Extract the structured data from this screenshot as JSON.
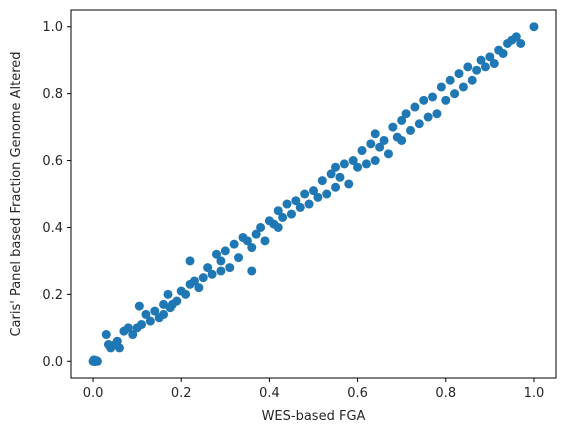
{
  "chart_data": {
    "type": "scatter",
    "title": "",
    "xlabel": "WES-based FGA",
    "ylabel": "Caris' Panel based Fraction Genome Altered",
    "xlim": [
      -0.05,
      1.05
    ],
    "ylim": [
      -0.05,
      1.05
    ],
    "xticks": [
      0.0,
      0.2,
      0.4,
      0.6,
      0.8,
      1.0
    ],
    "yticks": [
      0.0,
      0.2,
      0.4,
      0.6,
      0.8,
      1.0
    ],
    "xtick_labels": [
      "0.0",
      "0.2",
      "0.4",
      "0.6",
      "0.8",
      "1.0"
    ],
    "ytick_labels": [
      "0.0",
      "0.2",
      "0.4",
      "0.6",
      "0.8",
      "1.0"
    ],
    "grid": false,
    "legend": "none",
    "marker_color": "#1f77b4",
    "series": [
      {
        "points": [
          [
            0.0,
            0.0
          ],
          [
            0.005,
            0.0
          ],
          [
            0.008,
            0.002
          ],
          [
            0.002,
            0.004
          ],
          [
            0.01,
            0.0
          ],
          [
            0.003,
            -0.001
          ],
          [
            0.03,
            0.08
          ],
          [
            0.04,
            0.04
          ],
          [
            0.05,
            0.05
          ],
          [
            0.06,
            0.04
          ],
          [
            0.035,
            0.05
          ],
          [
            0.055,
            0.06
          ],
          [
            0.07,
            0.09
          ],
          [
            0.08,
            0.1
          ],
          [
            0.09,
            0.08
          ],
          [
            0.1,
            0.1
          ],
          [
            0.105,
            0.165
          ],
          [
            0.11,
            0.11
          ],
          [
            0.12,
            0.14
          ],
          [
            0.13,
            0.12
          ],
          [
            0.14,
            0.15
          ],
          [
            0.15,
            0.13
          ],
          [
            0.16,
            0.17
          ],
          [
            0.16,
            0.14
          ],
          [
            0.17,
            0.2
          ],
          [
            0.175,
            0.16
          ],
          [
            0.18,
            0.17
          ],
          [
            0.19,
            0.18
          ],
          [
            0.2,
            0.21
          ],
          [
            0.21,
            0.2
          ],
          [
            0.22,
            0.3
          ],
          [
            0.22,
            0.23
          ],
          [
            0.23,
            0.24
          ],
          [
            0.24,
            0.22
          ],
          [
            0.25,
            0.25
          ],
          [
            0.26,
            0.28
          ],
          [
            0.27,
            0.26
          ],
          [
            0.28,
            0.32
          ],
          [
            0.29,
            0.3
          ],
          [
            0.29,
            0.27
          ],
          [
            0.3,
            0.33
          ],
          [
            0.31,
            0.28
          ],
          [
            0.32,
            0.35
          ],
          [
            0.33,
            0.31
          ],
          [
            0.34,
            0.37
          ],
          [
            0.35,
            0.36
          ],
          [
            0.36,
            0.34
          ],
          [
            0.36,
            0.27
          ],
          [
            0.37,
            0.38
          ],
          [
            0.38,
            0.4
          ],
          [
            0.39,
            0.36
          ],
          [
            0.4,
            0.42
          ],
          [
            0.41,
            0.41
          ],
          [
            0.42,
            0.4
          ],
          [
            0.42,
            0.45
          ],
          [
            0.43,
            0.43
          ],
          [
            0.44,
            0.47
          ],
          [
            0.45,
            0.44
          ],
          [
            0.46,
            0.48
          ],
          [
            0.47,
            0.46
          ],
          [
            0.48,
            0.5
          ],
          [
            0.49,
            0.47
          ],
          [
            0.5,
            0.51
          ],
          [
            0.51,
            0.49
          ],
          [
            0.52,
            0.54
          ],
          [
            0.53,
            0.5
          ],
          [
            0.54,
            0.56
          ],
          [
            0.55,
            0.52
          ],
          [
            0.55,
            0.58
          ],
          [
            0.56,
            0.55
          ],
          [
            0.57,
            0.59
          ],
          [
            0.58,
            0.53
          ],
          [
            0.59,
            0.6
          ],
          [
            0.6,
            0.58
          ],
          [
            0.61,
            0.63
          ],
          [
            0.62,
            0.59
          ],
          [
            0.63,
            0.65
          ],
          [
            0.64,
            0.6
          ],
          [
            0.64,
            0.68
          ],
          [
            0.65,
            0.64
          ],
          [
            0.66,
            0.66
          ],
          [
            0.67,
            0.62
          ],
          [
            0.68,
            0.7
          ],
          [
            0.69,
            0.67
          ],
          [
            0.7,
            0.72
          ],
          [
            0.7,
            0.66
          ],
          [
            0.71,
            0.74
          ],
          [
            0.72,
            0.69
          ],
          [
            0.73,
            0.76
          ],
          [
            0.74,
            0.71
          ],
          [
            0.75,
            0.78
          ],
          [
            0.76,
            0.73
          ],
          [
            0.77,
            0.79
          ],
          [
            0.78,
            0.74
          ],
          [
            0.79,
            0.82
          ],
          [
            0.8,
            0.78
          ],
          [
            0.81,
            0.84
          ],
          [
            0.82,
            0.8
          ],
          [
            0.83,
            0.86
          ],
          [
            0.84,
            0.82
          ],
          [
            0.85,
            0.88
          ],
          [
            0.86,
            0.84
          ],
          [
            0.87,
            0.87
          ],
          [
            0.88,
            0.9
          ],
          [
            0.89,
            0.88
          ],
          [
            0.9,
            0.91
          ],
          [
            0.91,
            0.89
          ],
          [
            0.92,
            0.93
          ],
          [
            0.93,
            0.92
          ],
          [
            0.94,
            0.95
          ],
          [
            0.95,
            0.96
          ],
          [
            0.96,
            0.97
          ],
          [
            0.97,
            0.95
          ],
          [
            1.0,
            1.0
          ]
        ]
      }
    ]
  }
}
